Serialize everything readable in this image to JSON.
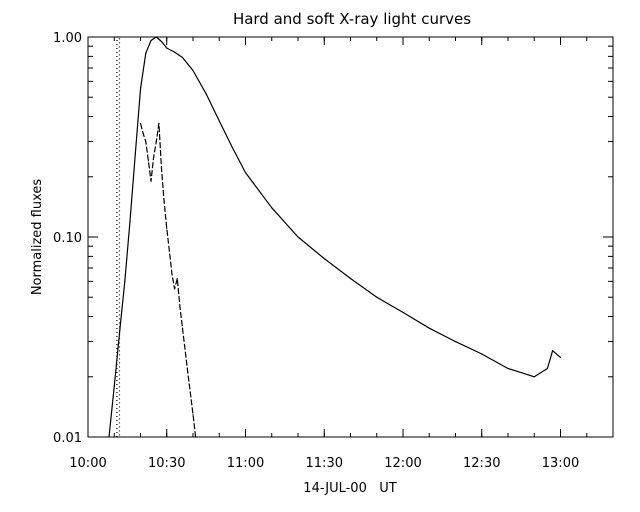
{
  "chart_data": {
    "type": "line",
    "title": "Hard and soft X-ray light curves",
    "xlabel": "14-JUL-00   UT",
    "ylabel": "Normalized fluxes",
    "y_scale": "log",
    "xlim": [
      "10:00",
      "13:20"
    ],
    "ylim": [
      0.01,
      1.0
    ],
    "x_ticks": [
      "10:00",
      "10:30",
      "11:00",
      "11:30",
      "12:00",
      "12:30",
      "13:00"
    ],
    "y_ticks": [
      "0.01",
      "0.10",
      "1.00"
    ],
    "grid": false,
    "legend": "none",
    "series": [
      {
        "style": "solid",
        "color": "#000000",
        "x": [
          "10:08",
          "10:10",
          "10:12",
          "10:14",
          "10:16",
          "10:18",
          "10:20",
          "10:22",
          "10:24",
          "10:26",
          "10:28",
          "10:30",
          "10:33",
          "10:36",
          "10:40",
          "10:45",
          "10:50",
          "10:55",
          "11:00",
          "11:10",
          "11:20",
          "11:30",
          "11:40",
          "11:50",
          "12:00",
          "12:10",
          "12:20",
          "12:30",
          "12:40",
          "12:45",
          "12:50",
          "12:55",
          "12:57",
          "13:00"
        ],
        "y": [
          0.01,
          0.018,
          0.033,
          0.06,
          0.12,
          0.26,
          0.55,
          0.83,
          0.96,
          1.0,
          0.95,
          0.88,
          0.84,
          0.79,
          0.68,
          0.52,
          0.38,
          0.28,
          0.21,
          0.14,
          0.1,
          0.078,
          0.062,
          0.05,
          0.042,
          0.035,
          0.03,
          0.026,
          0.022,
          0.021,
          0.02,
          0.022,
          0.027,
          0.025
        ]
      },
      {
        "style": "dashed",
        "color": "#000000",
        "x": [
          "10:20",
          "10:21",
          "10:22",
          "10:23",
          "10:24",
          "10:25",
          "10:26",
          "10:27",
          "10:28",
          "10:29",
          "10:30",
          "10:31",
          "10:32",
          "10:33",
          "10:34",
          "10:35",
          "10:36",
          "10:38",
          "10:40",
          "10:41"
        ],
        "y": [
          0.37,
          0.33,
          0.3,
          0.24,
          0.19,
          0.25,
          0.3,
          0.37,
          0.22,
          0.15,
          0.11,
          0.085,
          0.065,
          0.055,
          0.062,
          0.045,
          0.035,
          0.021,
          0.013,
          0.01
        ]
      },
      {
        "style": "dotted",
        "color": "#000000",
        "x": [
          "10:11",
          "10:11",
          "10:12",
          "10:12"
        ],
        "y": [
          0.01,
          1.0,
          1.0,
          0.01
        ]
      }
    ]
  }
}
